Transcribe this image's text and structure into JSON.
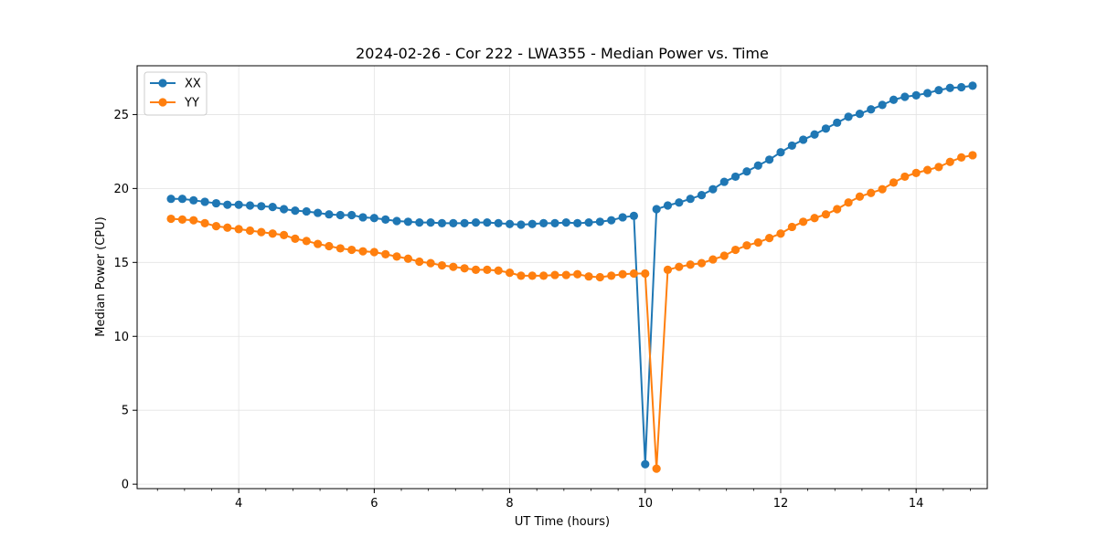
{
  "chart_data": {
    "type": "line",
    "title": "2024-02-26 - Cor 222 - LWA355 - Median Power vs. Time",
    "xlabel": "UT Time (hours)",
    "ylabel": "Median Power (CPU)",
    "xlim": [
      2.5,
      15.05
    ],
    "ylim": [
      -0.3,
      28.3
    ],
    "xticks": [
      4,
      6,
      8,
      10,
      12,
      14
    ],
    "yticks": [
      0,
      5,
      10,
      15,
      20,
      25
    ],
    "x_minor_step": 0.4,
    "grid": true,
    "legend_location": "upper-left",
    "x": [
      3.0,
      3.167,
      3.333,
      3.5,
      3.667,
      3.833,
      4.0,
      4.167,
      4.333,
      4.5,
      4.667,
      4.833,
      5.0,
      5.167,
      5.333,
      5.5,
      5.667,
      5.833,
      6.0,
      6.167,
      6.333,
      6.5,
      6.667,
      6.833,
      7.0,
      7.167,
      7.333,
      7.5,
      7.667,
      7.833,
      8.0,
      8.167,
      8.333,
      8.5,
      8.667,
      8.833,
      9.0,
      9.167,
      9.333,
      9.5,
      9.667,
      9.833,
      10.0,
      10.167,
      10.333,
      10.5,
      10.667,
      10.833,
      11.0,
      11.167,
      11.333,
      11.5,
      11.667,
      11.833,
      12.0,
      12.167,
      12.333,
      12.5,
      12.667,
      12.833,
      13.0,
      13.167,
      13.333,
      13.5,
      13.667,
      13.833,
      14.0,
      14.167,
      14.333,
      14.5,
      14.667,
      14.833
    ],
    "series": [
      {
        "name": "XX",
        "color": "#1f77b4",
        "values": [
          19.3,
          19.3,
          19.2,
          19.1,
          19.0,
          18.9,
          18.9,
          18.85,
          18.8,
          18.75,
          18.6,
          18.5,
          18.45,
          18.35,
          18.25,
          18.2,
          18.2,
          18.05,
          18.0,
          17.9,
          17.8,
          17.75,
          17.7,
          17.7,
          17.65,
          17.65,
          17.65,
          17.7,
          17.7,
          17.65,
          17.6,
          17.55,
          17.6,
          17.65,
          17.65,
          17.7,
          17.65,
          17.7,
          17.75,
          17.85,
          18.05,
          18.15,
          1.35,
          18.6,
          18.85,
          19.05,
          19.3,
          19.55,
          19.95,
          20.45,
          20.8,
          21.15,
          21.55,
          21.95,
          22.45,
          22.9,
          23.3,
          23.65,
          24.05,
          24.45,
          24.85,
          25.05,
          25.35,
          25.65,
          26.0,
          26.2,
          26.3,
          26.45,
          26.65,
          26.8,
          26.85,
          26.95
        ]
      },
      {
        "name": "YY",
        "color": "#ff7f0e",
        "values": [
          17.95,
          17.9,
          17.85,
          17.65,
          17.45,
          17.35,
          17.25,
          17.15,
          17.05,
          16.95,
          16.85,
          16.6,
          16.45,
          16.25,
          16.1,
          15.95,
          15.85,
          15.75,
          15.7,
          15.55,
          15.4,
          15.25,
          15.05,
          14.95,
          14.8,
          14.7,
          14.6,
          14.5,
          14.5,
          14.45,
          14.3,
          14.1,
          14.1,
          14.1,
          14.15,
          14.15,
          14.2,
          14.05,
          14.0,
          14.1,
          14.2,
          14.25,
          14.25,
          1.05,
          14.5,
          14.7,
          14.85,
          14.95,
          15.2,
          15.45,
          15.85,
          16.15,
          16.35,
          16.65,
          16.95,
          17.4,
          17.75,
          18.0,
          18.25,
          18.6,
          19.05,
          19.45,
          19.7,
          19.95,
          20.4,
          20.8,
          21.05,
          21.25,
          21.45,
          21.8,
          22.1,
          22.25
        ]
      }
    ]
  }
}
